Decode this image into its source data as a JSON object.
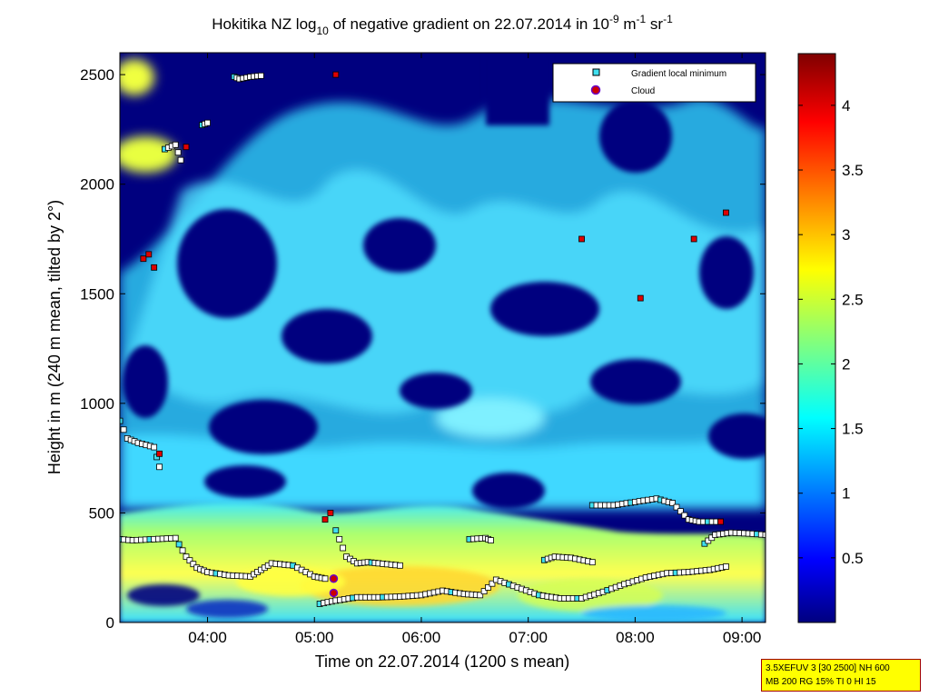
{
  "chart_data": {
    "type": "heatmap",
    "title": {
      "pre": "Hokitika NZ log",
      "sub": "10",
      "mid": " of negative gradient on 22.07.2014 in 10",
      "exp1": "-9",
      "mid2": " m",
      "exp2": "-1",
      "mid3": " sr",
      "exp3": "-1"
    },
    "xlabel": "Time on 22.07.2014 (1200 s mean)",
    "ylabel": "Height in m (240 m mean, tilted by 2°)",
    "xlim_hours": [
      3.18,
      9.22
    ],
    "ylim": [
      0,
      2600
    ],
    "xticks": [
      {
        "value": 4,
        "label": "04:00"
      },
      {
        "value": 5,
        "label": "05:00"
      },
      {
        "value": 6,
        "label": "06:00"
      },
      {
        "value": 7,
        "label": "07:00"
      },
      {
        "value": 8,
        "label": "08:00"
      },
      {
        "value": 9,
        "label": "09:00"
      }
    ],
    "yticks": [
      {
        "value": 0,
        "label": "0"
      },
      {
        "value": 500,
        "label": "500"
      },
      {
        "value": 1000,
        "label": "1000"
      },
      {
        "value": 1500,
        "label": "1500"
      },
      {
        "value": 2000,
        "label": "2000"
      },
      {
        "value": 2500,
        "label": "2500"
      }
    ],
    "colorbar": {
      "range": [
        0,
        4.4
      ],
      "ticks": [
        {
          "value": 0.5,
          "label": "0.5"
        },
        {
          "value": 1,
          "label": "1"
        },
        {
          "value": 1.5,
          "label": "1.5"
        },
        {
          "value": 2,
          "label": "2"
        },
        {
          "value": 2.5,
          "label": "2.5"
        },
        {
          "value": 3,
          "label": "3"
        },
        {
          "value": 3.5,
          "label": "3.5"
        },
        {
          "value": 4,
          "label": "4"
        }
      ]
    },
    "legend": {
      "placement": "top-right",
      "entries": [
        {
          "label": "Gradient local minimum",
          "color": "#40e0f0",
          "marker": "square"
        },
        {
          "label": "Cloud",
          "color": "#cc0000",
          "marker": "circle"
        }
      ]
    },
    "colors": {
      "background_field": "#00007f",
      "mid_field": "#30d0ff",
      "boundary_layer": "#ffff40",
      "marker_fill": "#ffffff",
      "marker_edge": "#000000"
    },
    "series": [
      {
        "kind": "gradient-minimum-trace",
        "x": [
          3.18,
          3.3,
          3.5,
          3.7,
          3.8,
          3.9,
          4.0,
          4.2,
          4.4,
          4.5,
          4.6,
          4.8,
          5.0,
          5.1
        ],
        "y": [
          380,
          375,
          380,
          385,
          300,
          250,
          230,
          215,
          210,
          240,
          270,
          260,
          210,
          200
        ]
      },
      {
        "kind": "gradient-minimum-trace",
        "x": [
          5.05,
          5.2,
          5.4,
          5.6,
          5.8,
          6.0,
          6.2,
          6.4,
          6.55,
          6.7,
          6.9,
          7.1,
          7.3,
          7.5,
          7.7,
          7.9,
          8.1,
          8.3,
          8.5,
          8.7,
          8.85
        ],
        "y": [
          85,
          100,
          115,
          115,
          118,
          125,
          145,
          130,
          125,
          195,
          160,
          125,
          110,
          110,
          140,
          175,
          205,
          225,
          230,
          240,
          255
        ]
      },
      {
        "kind": "gradient-minimum-trace",
        "x": [
          5.2,
          5.3,
          5.4,
          5.5,
          5.6,
          5.8
        ],
        "y": [
          420,
          300,
          270,
          275,
          270,
          260
        ]
      },
      {
        "kind": "gradient-minimum-trace",
        "x": [
          7.15,
          7.25,
          7.4,
          7.6
        ],
        "y": [
          285,
          300,
          295,
          275
        ]
      },
      {
        "kind": "gradient-minimum-trace",
        "x": [
          7.6,
          7.8,
          8.0,
          8.2,
          8.35,
          8.5,
          8.6,
          8.8
        ],
        "y": [
          535,
          535,
          550,
          565,
          545,
          470,
          460,
          460
        ]
      },
      {
        "kind": "gradient-minimum-trace",
        "x": [
          8.65,
          8.75,
          8.9,
          9.1,
          9.22
        ],
        "y": [
          360,
          400,
          410,
          405,
          400
        ]
      },
      {
        "kind": "gradient-minimum-trace",
        "x": [
          3.18,
          3.25,
          3.35,
          3.5,
          3.55
        ],
        "y": [
          920,
          840,
          820,
          800,
          710
        ]
      },
      {
        "kind": "gradient-minimum-trace",
        "x": [
          6.45,
          6.6,
          6.65
        ],
        "y": [
          380,
          385,
          375
        ]
      },
      {
        "kind": "gradient-minimum-trace",
        "x": [
          4.25,
          4.3,
          4.4,
          4.5
        ],
        "y": [
          2490,
          2480,
          2490,
          2495
        ]
      },
      {
        "kind": "gradient-minimum-trace",
        "x": [
          3.6,
          3.7,
          3.75
        ],
        "y": [
          2160,
          2180,
          2110
        ]
      },
      {
        "kind": "gradient-minimum-trace",
        "x": [
          3.95,
          4.0
        ],
        "y": [
          2270,
          2280
        ]
      }
    ],
    "red_markers": {
      "x": [
        3.4,
        3.45,
        3.5,
        3.55,
        3.8,
        5.1,
        5.15,
        5.2,
        7.5,
        8.05,
        8.55,
        8.85,
        8.8
      ],
      "y": [
        1660,
        1680,
        1620,
        770,
        2170,
        470,
        500,
        2500,
        1750,
        1480,
        1750,
        1870,
        460
      ]
    },
    "cloud_points": {
      "x": [
        5.18,
        5.18
      ],
      "y": [
        200,
        135
      ]
    },
    "settings_box": [
      "3.5XEFUV 3 [30 2500] NH 600",
      "MB 200 RG 15% TI 0 HI 15"
    ]
  }
}
